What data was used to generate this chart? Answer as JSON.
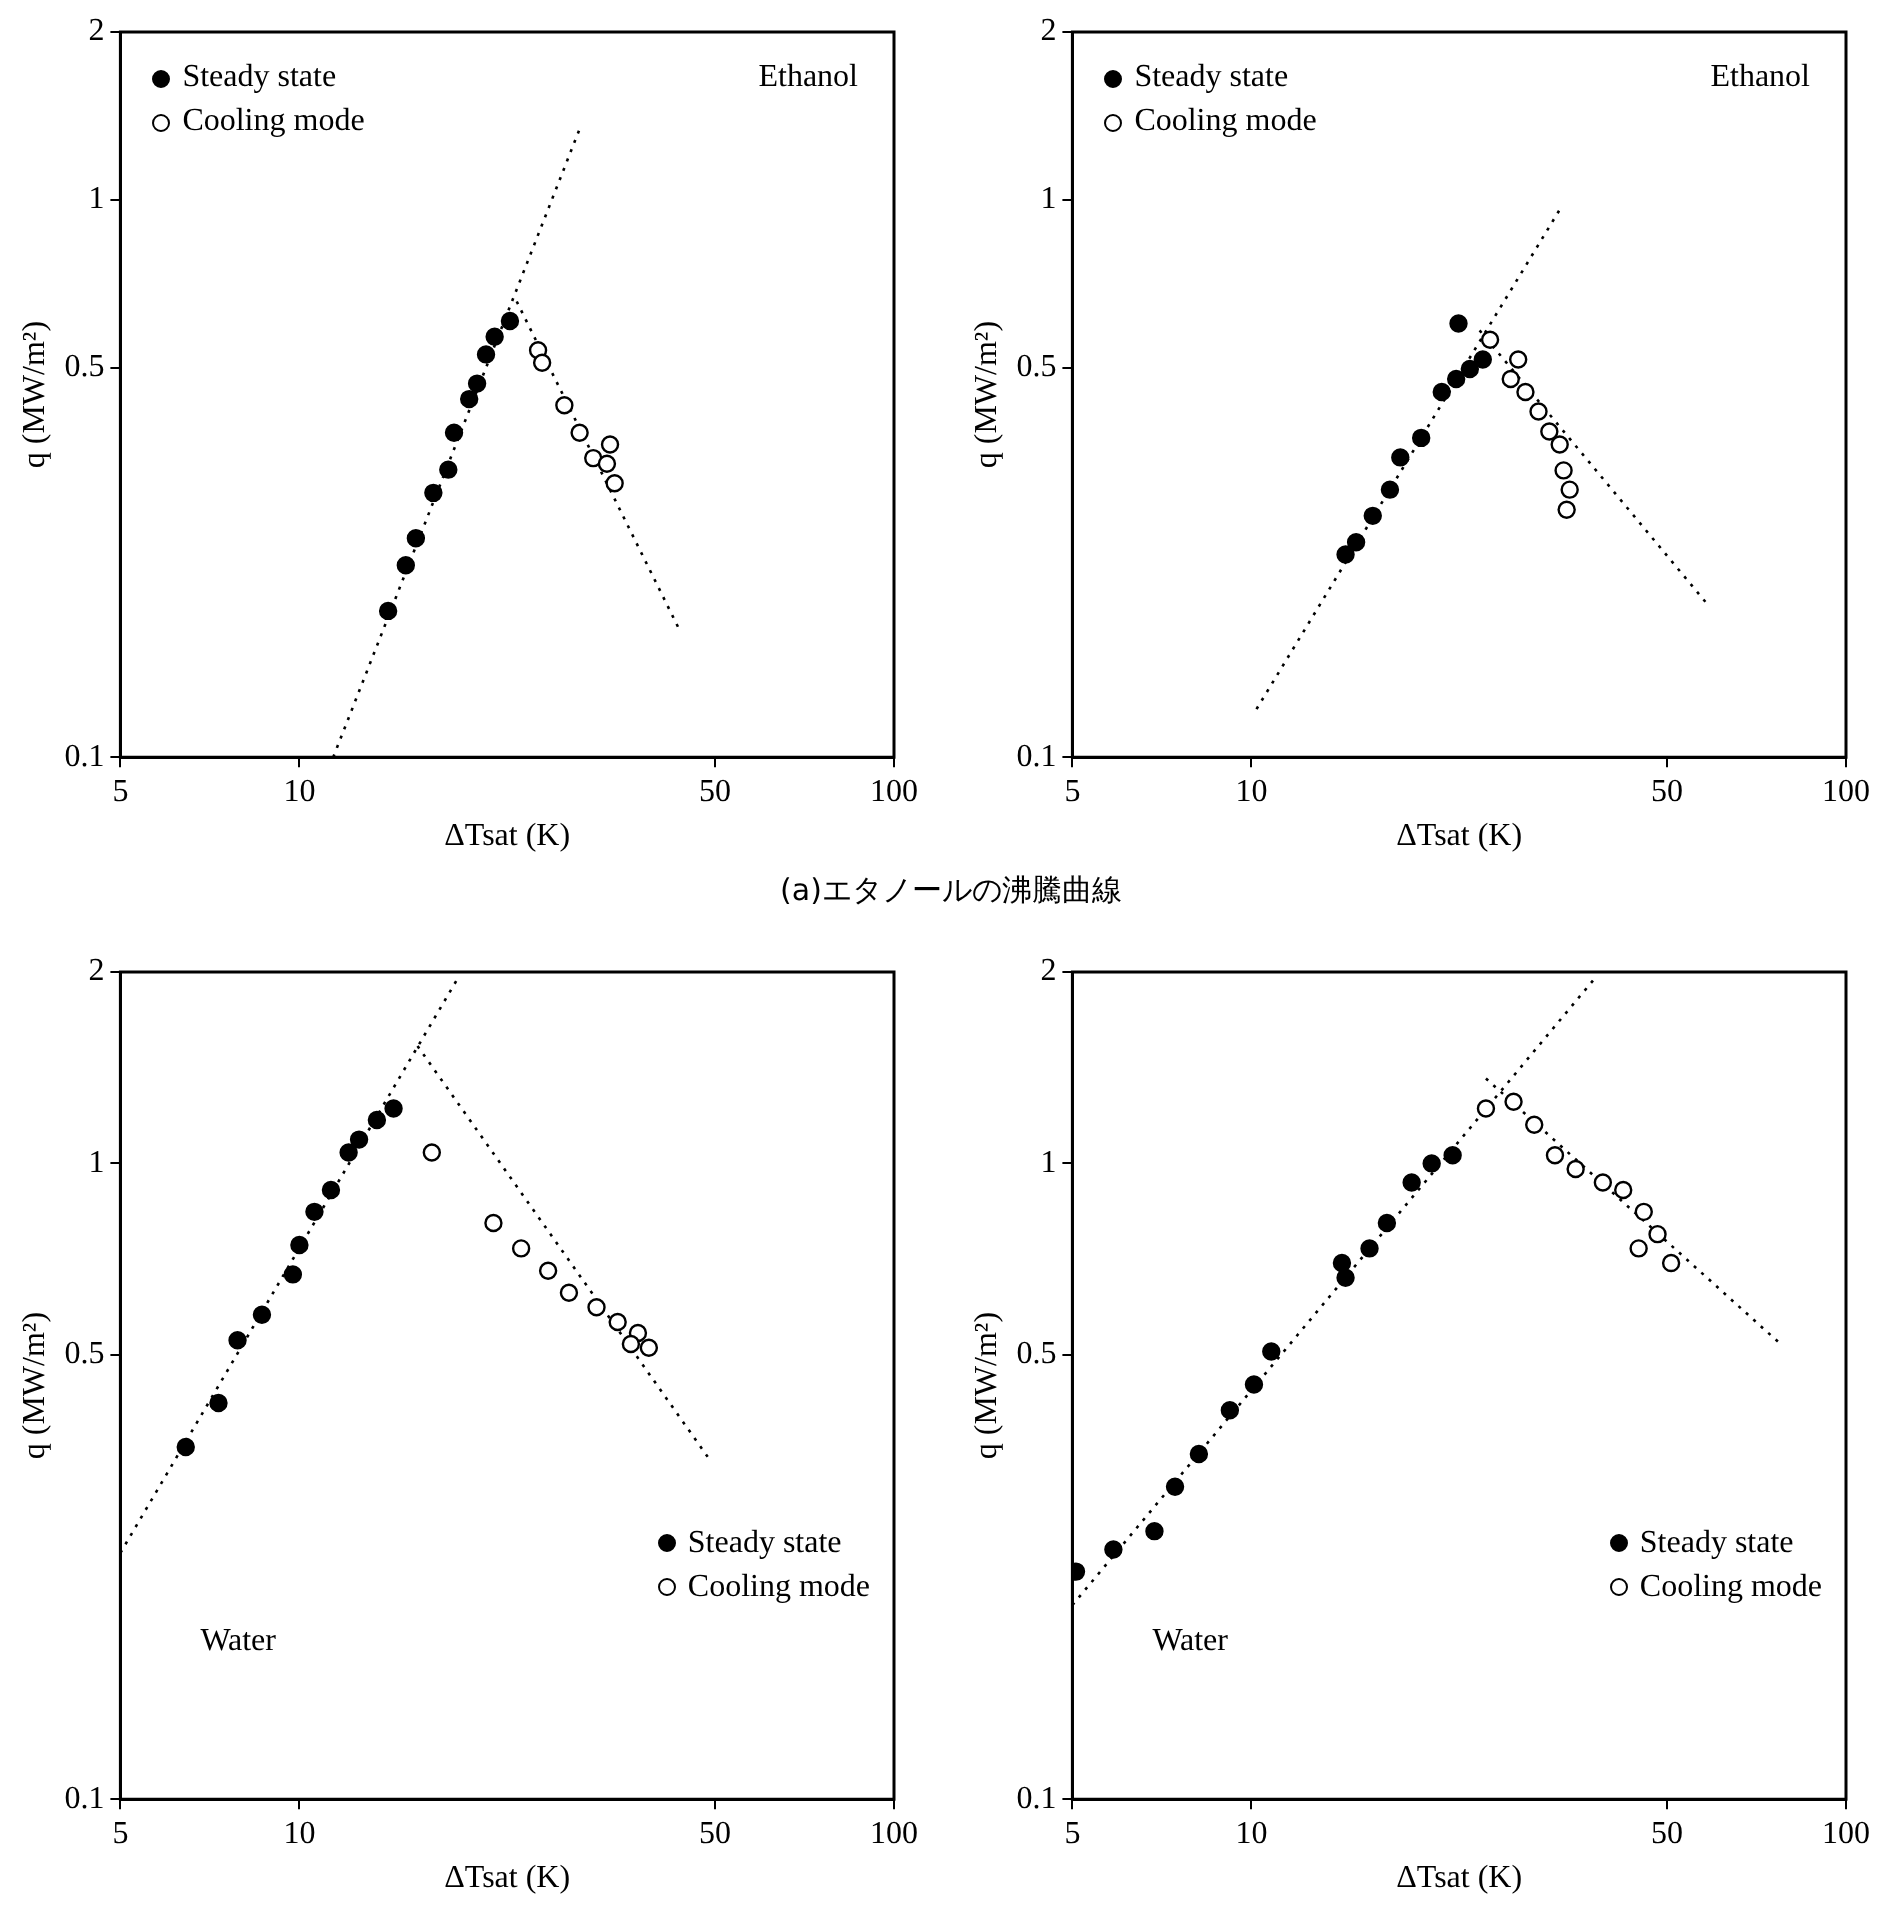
{
  "chart_data": [
    {
      "type": "scatter",
      "xlabel": "ΔTsat (K)",
      "ylabel": "q (MW/m²)",
      "log": "xy",
      "xlim": [
        5,
        100
      ],
      "ylim": [
        0.1,
        2
      ],
      "xticks": [
        5,
        10,
        50,
        100
      ],
      "yticks": [
        0.1,
        0.5,
        1,
        2
      ],
      "legend": "top left",
      "annotations": [
        "Ethanol",
        "(a)エタノールの沸騰曲線"
      ],
      "series": [
        {
          "name": "Steady state",
          "type": "scatter",
          "marker": "circle",
          "color": "#000000",
          "x": [
            14.1,
            15.1,
            15.7,
            16.8,
            17.8,
            18.2,
            19.3,
            19.9,
            20.6,
            21.3,
            22.6
          ],
          "values": [
            0.183,
            0.221,
            0.247,
            0.298,
            0.328,
            0.382,
            0.439,
            0.468,
            0.528,
            0.568,
            0.606
          ]
        },
        {
          "name": "Cooling mode",
          "type": "scatter",
          "marker": "circle",
          "color": "#000000",
          "x": [
            25.2,
            25.6,
            27.9,
            29.6,
            31.2,
            32.9,
            33.9,
            33.3
          ],
          "values": [
            0.537,
            0.51,
            0.428,
            0.382,
            0.344,
            0.336,
            0.31,
            0.364
          ]
        },
        {
          "type": "line",
          "marker": "none",
          "line_style": "dotted",
          "color": "#000000",
          "x": [
            11.4,
            29.6
          ],
          "values": [
            0.1,
            1.34
          ]
        },
        {
          "type": "line",
          "marker": "none",
          "line_style": "dotted",
          "color": "#000000",
          "x": [
            23.2,
            43.6
          ],
          "values": [
            0.657,
            0.169
          ]
        }
      ]
    },
    {
      "type": "scatter",
      "xlabel": "ΔTsat (K)",
      "ylabel": "q (MW/m²)",
      "log": "xy",
      "xlim": [
        5,
        100
      ],
      "ylim": [
        0.1,
        2
      ],
      "xticks": [
        5,
        10,
        50,
        100
      ],
      "yticks": [
        0.1,
        0.5,
        1,
        2
      ],
      "legend": "top left",
      "annotations": [
        "Ethanol"
      ],
      "series": [
        {
          "name": "Steady state",
          "type": "scatter",
          "marker": "circle",
          "color": "#000000",
          "x": [
            14.4,
            15.0,
            16.0,
            17.1,
            17.8,
            19.3,
            20.9,
            22.1,
            23.3,
            24.5,
            22.3
          ],
          "values": [
            0.231,
            0.243,
            0.271,
            0.302,
            0.345,
            0.374,
            0.452,
            0.477,
            0.497,
            0.517,
            0.6
          ]
        },
        {
          "name": "Cooling mode",
          "type": "scatter",
          "marker": "circle",
          "color": "#000000",
          "x": [
            25.2,
            27.3,
            28.9,
            30.4,
            31.7,
            33.0,
            33.5,
            34.3,
            33.9,
            28.1
          ],
          "values": [
            0.561,
            0.477,
            0.452,
            0.417,
            0.384,
            0.364,
            0.327,
            0.302,
            0.278,
            0.517
          ]
        },
        {
          "type": "line",
          "marker": "none",
          "line_style": "dotted",
          "color": "#000000",
          "x": [
            10.2,
            33.0
          ],
          "values": [
            0.122,
            0.96
          ]
        },
        {
          "type": "line",
          "marker": "none",
          "line_style": "dotted",
          "color": "#000000",
          "x": [
            24.2,
            58.5
          ],
          "values": [
            0.583,
            0.188
          ]
        }
      ]
    },
    {
      "type": "scatter",
      "xlabel": "ΔTsat (K)",
      "ylabel": "q (MW/m²)",
      "log": "xy",
      "xlim": [
        5,
        100
      ],
      "ylim": [
        0.1,
        2
      ],
      "xticks": [
        5,
        10,
        50,
        100
      ],
      "yticks": [
        0.1,
        0.5,
        1,
        2
      ],
      "legend": "bottom right",
      "annotations": [
        "Water"
      ],
      "series": [
        {
          "name": "Steady state",
          "type": "scatter",
          "marker": "circle",
          "color": "#000000",
          "x": [
            6.44,
            7.31,
            7.87,
            8.65,
            9.75,
            10.0,
            10.6,
            11.3,
            12.1,
            12.6,
            13.5,
            14.4
          ],
          "values": [
            0.358,
            0.42,
            0.527,
            0.578,
            0.669,
            0.744,
            0.839,
            0.908,
            1.04,
            1.09,
            1.17,
            1.22
          ]
        },
        {
          "name": "Cooling mode",
          "type": "scatter",
          "marker": "circle",
          "color": "#000000",
          "x": [
            16.7,
            21.2,
            23.6,
            26.2,
            28.4,
            31.6,
            34.3,
            37.1,
            38.7,
            36.1
          ],
          "values": [
            1.04,
            0.806,
            0.735,
            0.678,
            0.626,
            0.594,
            0.563,
            0.541,
            0.513,
            0.52
          ]
        },
        {
          "type": "line",
          "marker": "none",
          "line_style": "dotted",
          "color": "#000000",
          "x": [
            5,
            18.5
          ],
          "values": [
            0.244,
            1.96
          ]
        },
        {
          "type": "line",
          "marker": "none",
          "line_style": "dotted",
          "color": "#000000",
          "x": [
            15.8,
            49.2
          ],
          "values": [
            1.53,
            0.34
          ]
        }
      ]
    },
    {
      "type": "scatter",
      "xlabel": "ΔTsat (K)",
      "ylabel": "q (MW/m²)",
      "log": "xy",
      "xlim": [
        5,
        100
      ],
      "ylim": [
        0.1,
        2
      ],
      "xticks": [
        5,
        10,
        50,
        100
      ],
      "yticks": [
        0.1,
        0.5,
        1,
        2
      ],
      "legend": "bottom right",
      "annotations": [
        "Water"
      ],
      "series": [
        {
          "name": "Steady state",
          "type": "scatter",
          "marker": "circle",
          "color": "#000000",
          "x": [
            5.07,
            5.86,
            6.87,
            7.44,
            8.16,
            9.2,
            10.1,
            10.8,
            14.2,
            14.4,
            15.8,
            16.9,
            18.6,
            20.1,
            21.8
          ],
          "values": [
            0.228,
            0.247,
            0.264,
            0.31,
            0.349,
            0.409,
            0.449,
            0.506,
            0.697,
            0.661,
            0.735,
            0.806,
            0.933,
            1.0,
            1.03
          ]
        },
        {
          "name": "Cooling mode",
          "type": "scatter",
          "marker": "circle",
          "color": "#000000",
          "x": [
            24.8,
            27.6,
            29.9,
            32.4,
            35.1,
            39.0,
            42.2,
            45.7,
            48.2,
            50.8,
            44.8
          ],
          "values": [
            1.22,
            1.25,
            1.15,
            1.03,
            0.98,
            0.933,
            0.908,
            0.839,
            0.774,
            0.697,
            0.735
          ]
        },
        {
          "type": "line",
          "marker": "none",
          "line_style": "dotted",
          "color": "#000000",
          "x": [
            5,
            37.9
          ],
          "values": [
            0.202,
            1.96
          ]
        },
        {
          "type": "line",
          "marker": "none",
          "line_style": "dotted",
          "color": "#000000",
          "x": [
            24.8,
            77.6
          ],
          "values": [
            1.36,
            0.52
          ]
        }
      ]
    }
  ]
}
